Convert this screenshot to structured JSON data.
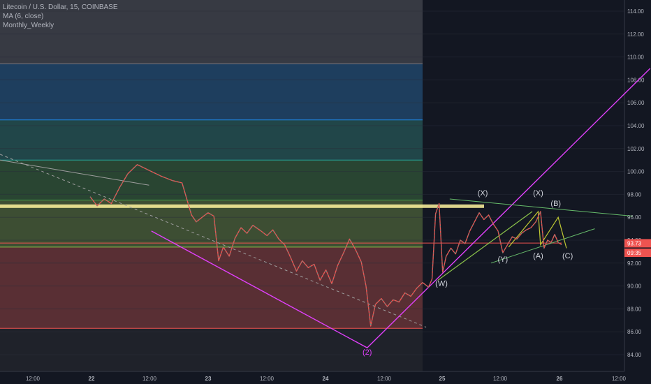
{
  "chart_data": {
    "type": "candlestick",
    "title": "Litecoin / U.S. Dollar, 15, COINBASE",
    "indicators": [
      "MA (6, close)",
      "Monthly_Weekly"
    ],
    "y_axis": {
      "side": "right",
      "range": [
        83.0,
        115.0
      ],
      "ticks": [
        "84.00",
        "86.00",
        "88.00",
        "90.00",
        "92.00",
        "94.00",
        "96.00",
        "98.00",
        "100.00",
        "102.00",
        "104.00",
        "106.00",
        "108.00",
        "110.00",
        "112.00",
        "114.00"
      ]
    },
    "x_axis": {
      "ticks": [
        "12:00",
        "22",
        "12:00",
        "23",
        "12:00",
        "24",
        "12:00",
        "25",
        "12:00",
        "26",
        "12:00"
      ],
      "bold_ticks": [
        "22",
        "23",
        "24",
        "25",
        "26"
      ]
    },
    "price_labels": [
      {
        "text": "93.73",
        "value": 93.73,
        "color": "#ef5350"
      },
      {
        "text": "09:35",
        "value": 92.9,
        "color": "#ef5350"
      }
    ],
    "price_path": [
      [
        0,
        97.8
      ],
      [
        0.06,
        97.0
      ],
      [
        0.12,
        97.6
      ],
      [
        0.18,
        97.2
      ],
      [
        0.25,
        98.6
      ],
      [
        0.32,
        99.8
      ],
      [
        0.4,
        100.6
      ],
      [
        0.5,
        100.1
      ],
      [
        0.6,
        99.6
      ],
      [
        0.7,
        99.2
      ],
      [
        0.78,
        99.0
      ],
      [
        0.86,
        96.2
      ],
      [
        0.9,
        95.6
      ],
      [
        0.95,
        96.0
      ],
      [
        1.0,
        96.4
      ],
      [
        1.05,
        96.1
      ],
      [
        1.09,
        92.2
      ],
      [
        1.13,
        93.4
      ],
      [
        1.18,
        92.6
      ],
      [
        1.23,
        94.2
      ],
      [
        1.28,
        95.1
      ],
      [
        1.33,
        94.6
      ],
      [
        1.38,
        95.3
      ],
      [
        1.45,
        94.8
      ],
      [
        1.5,
        94.4
      ],
      [
        1.55,
        94.9
      ],
      [
        1.6,
        94.1
      ],
      [
        1.65,
        93.6
      ],
      [
        1.7,
        92.5
      ],
      [
        1.75,
        91.3
      ],
      [
        1.8,
        92.2
      ],
      [
        1.85,
        91.6
      ],
      [
        1.9,
        91.9
      ],
      [
        1.95,
        90.5
      ],
      [
        2.0,
        91.4
      ],
      [
        2.05,
        90.2
      ],
      [
        2.1,
        91.8
      ],
      [
        2.15,
        92.9
      ],
      [
        2.2,
        94.1
      ],
      [
        2.25,
        93.2
      ],
      [
        2.3,
        92.1
      ],
      [
        2.34,
        90.0
      ],
      [
        2.38,
        86.5
      ],
      [
        2.42,
        88.4
      ],
      [
        2.47,
        88.9
      ],
      [
        2.52,
        88.2
      ],
      [
        2.57,
        88.8
      ],
      [
        2.62,
        88.6
      ],
      [
        2.67,
        89.4
      ],
      [
        2.72,
        89.1
      ],
      [
        2.77,
        89.8
      ],
      [
        2.82,
        90.3
      ],
      [
        2.87,
        89.9
      ],
      [
        2.9,
        90.6
      ],
      [
        2.93,
        96.3
      ],
      [
        2.96,
        97.2
      ],
      [
        2.99,
        91.2
      ],
      [
        3.02,
        92.6
      ],
      [
        3.06,
        93.3
      ],
      [
        3.1,
        92.8
      ],
      [
        3.14,
        94.0
      ],
      [
        3.18,
        93.7
      ],
      [
        3.22,
        94.8
      ],
      [
        3.26,
        95.6
      ],
      [
        3.3,
        96.4
      ],
      [
        3.34,
        95.8
      ],
      [
        3.38,
        96.2
      ],
      [
        3.42,
        95.4
      ],
      [
        3.46,
        94.8
      ],
      [
        3.5,
        92.9
      ],
      [
        3.54,
        93.6
      ],
      [
        3.58,
        94.3
      ],
      [
        3.62,
        94.1
      ],
      [
        3.66,
        94.6
      ],
      [
        3.7,
        94.9
      ],
      [
        3.74,
        95.1
      ],
      [
        3.78,
        95.6
      ],
      [
        3.82,
        96.5
      ],
      [
        3.85,
        93.3
      ],
      [
        3.88,
        94.0
      ],
      [
        3.91,
        93.8
      ],
      [
        3.94,
        94.5
      ],
      [
        3.97,
        93.8
      ],
      [
        4.0,
        93.6
      ]
    ],
    "elliott_labels": [
      {
        "text": "(2)",
        "x": 2.35,
        "y": 84.0,
        "color": "#e040fb"
      },
      {
        "text": "(W)",
        "x": 2.98,
        "y": 90.0,
        "color": "#d1d4dc"
      },
      {
        "text": "(X)",
        "x": 3.33,
        "y": 97.9,
        "color": "#d1d4dc"
      },
      {
        "text": "(Y)",
        "x": 3.5,
        "y": 92.1,
        "color": "#d1d4dc"
      },
      {
        "text": "(X)",
        "x": 3.8,
        "y": 97.9,
        "color": "#d1d4dc"
      },
      {
        "text": "(A)",
        "x": 3.8,
        "y": 92.4,
        "color": "#d1d4dc"
      },
      {
        "text": "(B)",
        "x": 3.95,
        "y": 97.0,
        "color": "#d1d4dc"
      },
      {
        "text": "(C)",
        "x": 4.05,
        "y": 92.4,
        "color": "#d1d4dc"
      }
    ],
    "zones": [
      {
        "from": 86.3,
        "to": 93.4,
        "color": "#ef5350"
      },
      {
        "from": 93.4,
        "to": 97.5,
        "color": "#8bc34a"
      },
      {
        "from": 97.5,
        "to": 101.0,
        "color": "#43a047"
      },
      {
        "from": 101.0,
        "to": 104.5,
        "color": "#26a69a"
      },
      {
        "from": 104.5,
        "to": 109.4,
        "color": "#1e88e5"
      },
      {
        "from": 109.4,
        "to": 115.0,
        "color": "#787b86"
      }
    ]
  }
}
